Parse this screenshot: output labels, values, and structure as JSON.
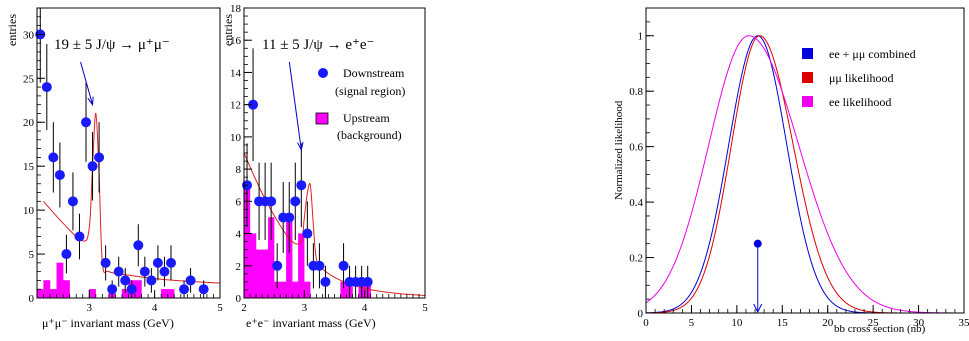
{
  "chart_data": [
    {
      "type": "histogram",
      "panel": "mumu",
      "ylabel": "entries",
      "xlabel": "μ⁺μ⁻ invariant mass (GeV)",
      "xlim": [
        2.2,
        5.0
      ],
      "ylim": [
        0,
        33
      ],
      "xticks": [
        "3",
        "4",
        "5"
      ],
      "yticks": [
        "0",
        "5",
        "10",
        "15",
        "20",
        "25",
        "30"
      ],
      "annotation": "19 ± 5  J/ψ → μ⁺μ⁻",
      "annotation_arrow_target": [
        3.05,
        22
      ],
      "bin_width": 0.1,
      "downstream": {
        "x": [
          2.25,
          2.35,
          2.45,
          2.55,
          2.65,
          2.75,
          2.85,
          2.95,
          3.05,
          3.15,
          3.25,
          3.35,
          3.45,
          3.55,
          3.65,
          3.75,
          3.85,
          3.95,
          4.05,
          4.15,
          4.25,
          4.45,
          4.55,
          4.75
        ],
        "y": [
          30,
          24,
          16,
          14,
          5,
          11,
          7,
          20,
          15,
          16,
          4,
          1,
          3,
          2,
          1,
          6,
          3,
          2,
          4,
          3,
          4,
          1,
          2,
          1
        ],
        "err": [
          5.5,
          4.9,
          4,
          3.7,
          2.2,
          3.3,
          2.6,
          4.5,
          3.9,
          4,
          2,
          1,
          1.7,
          1.4,
          1,
          2.4,
          1.7,
          1.4,
          2,
          1.7,
          2,
          1,
          1.4,
          1
        ]
      },
      "upstream": [
        1,
        2,
        1,
        4,
        2,
        0,
        0,
        0,
        1,
        0,
        0,
        1,
        0,
        1,
        2,
        2,
        0,
        0,
        0,
        1,
        1,
        0,
        0,
        0,
        0,
        0,
        0
      ],
      "fit_curve": {
        "x": [
          2.3,
          2.6,
          2.9,
          3.0,
          3.05,
          3.1,
          3.15,
          3.2,
          3.3,
          3.6,
          4.0,
          4.5,
          5.0
        ],
        "y": [
          11,
          8.5,
          6.5,
          8,
          15,
          21,
          14,
          4,
          3,
          2.6,
          2.2,
          1.9,
          1.7
        ]
      }
    },
    {
      "type": "histogram",
      "panel": "ee",
      "ylabel": "entries",
      "xlabel": "e⁺e⁻ invariant mass (GeV)",
      "xlim": [
        2.0,
        5.0
      ],
      "ylim": [
        0,
        18
      ],
      "xticks": [
        "2",
        "3",
        "4",
        "5"
      ],
      "yticks": [
        "0",
        "2",
        "4",
        "6",
        "8",
        "10",
        "12",
        "14",
        "16",
        "18"
      ],
      "annotation": "11 ± 5  J/ψ → e⁺e⁻",
      "annotation_arrow_target": [
        2.95,
        9.2
      ],
      "legend": [
        {
          "marker": "dot",
          "label": "Downstream",
          "sublabel": "(signal region)"
        },
        {
          "marker": "box",
          "label": "Upstream",
          "sublabel": "(background)"
        }
      ],
      "bin_width": 0.1,
      "downstream": {
        "x": [
          2.05,
          2.15,
          2.25,
          2.35,
          2.45,
          2.55,
          2.65,
          2.75,
          2.85,
          2.95,
          3.05,
          3.15,
          3.25,
          3.35,
          3.65,
          3.75,
          3.85,
          3.95,
          4.05
        ],
        "y": [
          7,
          12,
          6,
          6,
          6,
          2,
          5,
          5,
          6,
          7,
          4,
          2,
          2,
          1,
          2,
          1,
          1,
          1,
          1
        ],
        "err": [
          2.6,
          3.5,
          2.4,
          2.4,
          2.4,
          1.4,
          2.2,
          2.2,
          2.4,
          2.6,
          2,
          1.4,
          1.4,
          1,
          1.4,
          1,
          1,
          1,
          1
        ]
      },
      "upstream": [
        7,
        4,
        3,
        3,
        5,
        1,
        1,
        5,
        1,
        4,
        1,
        0,
        0,
        0,
        0,
        0,
        1,
        1,
        0,
        1,
        1,
        0,
        0,
        0,
        0,
        0,
        0,
        0,
        0,
        0
      ],
      "fit_curve": {
        "x": [
          2.0,
          2.3,
          2.6,
          2.8,
          2.95,
          3.0,
          3.05,
          3.1,
          3.15,
          3.2,
          3.3,
          3.6,
          4.0,
          4.5,
          5.0
        ],
        "y": [
          9,
          6.5,
          4.5,
          3.5,
          3.5,
          5,
          6.5,
          7,
          4.5,
          2.4,
          1.8,
          1.1,
          0.6,
          0.3,
          0.15
        ]
      }
    },
    {
      "type": "line",
      "panel": "likelihood",
      "ylabel": "Normalized likelihood",
      "xlabel": "bb cross section  (nb)",
      "xlim": [
        0,
        35
      ],
      "ylim": [
        0,
        1.1
      ],
      "xticks": [
        "0",
        "5",
        "10",
        "15",
        "20",
        "25",
        "30",
        "35"
      ],
      "yticks": [
        "0",
        "0.2",
        "0.4",
        "0.6",
        "0.8",
        "1"
      ],
      "series": [
        {
          "name": "ee + μμ combined",
          "color": "#0000dd",
          "mean": 12.3,
          "sigma_left": 3.2,
          "sigma_right": 3.2
        },
        {
          "name": "μμ likelihood",
          "color": "#dd0000",
          "mean": 12.5,
          "sigma_left": 3.1,
          "sigma_right": 3.7
        },
        {
          "name": "ee likelihood",
          "color": "#ee00ee",
          "mean": 11.3,
          "sigma_left": 4.4,
          "sigma_right": 5.5
        }
      ],
      "marker": {
        "x": 12.3,
        "y": 0.25
      }
    }
  ]
}
